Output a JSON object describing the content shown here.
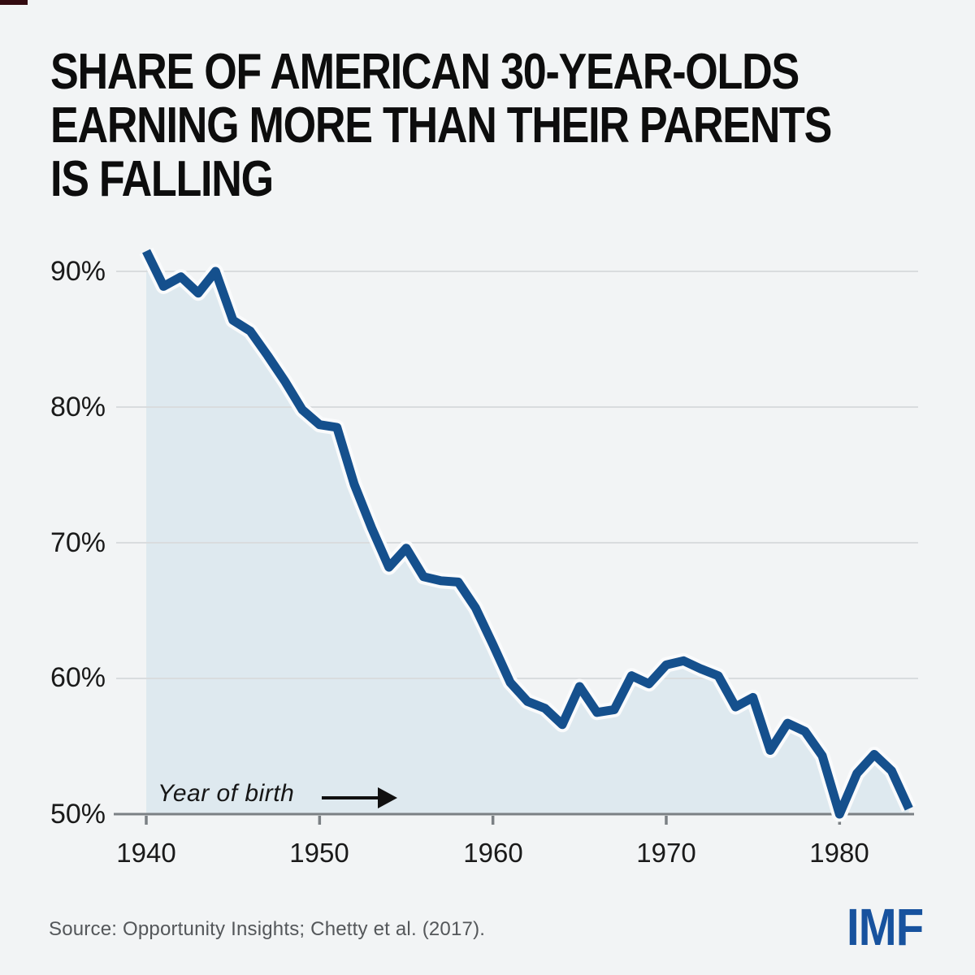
{
  "title_lines": [
    "SHARE OF AMERICAN 30-YEAR-OLDS",
    "EARNING MORE THAN THEIR PARENTS",
    "IS FALLING"
  ],
  "source": "Source: Opportunity Insights; Chetty et al. (2017).",
  "logo": "IMF",
  "colors": {
    "background": "#f2f4f5",
    "line": "#15508d",
    "fill": "#dee9ef",
    "halo": "#fafbfc",
    "gridline": "#d9dcde",
    "axis": "#7b8084",
    "logo_blue": "#17529e",
    "title_text": "#0d0d0d",
    "source_text": "#54575a"
  },
  "chart_data": {
    "type": "area",
    "title": "Share of American 30-year-olds earning more than their parents is falling",
    "xlabel": "Year of birth",
    "ylabel": "",
    "annotation": "Year of birth",
    "grid": "horizontal",
    "legend": "none",
    "xlim": [
      1940,
      1984
    ],
    "ylim": [
      50,
      92
    ],
    "y_tick_labels": [
      "90%",
      "80%",
      "70%",
      "60%",
      "50%"
    ],
    "y_tick_values": [
      90,
      80,
      70,
      60,
      50
    ],
    "x_tick_labels": [
      "1940",
      "1950",
      "1960",
      "1970",
      "1980"
    ],
    "x_tick_values": [
      1940,
      1950,
      1960,
      1970,
      1980
    ],
    "x": [
      1940,
      1941,
      1942,
      1943,
      1944,
      1945,
      1946,
      1947,
      1948,
      1949,
      1950,
      1951,
      1952,
      1953,
      1954,
      1955,
      1956,
      1957,
      1958,
      1959,
      1960,
      1961,
      1962,
      1963,
      1964,
      1965,
      1966,
      1967,
      1968,
      1969,
      1970,
      1971,
      1972,
      1973,
      1974,
      1975,
      1976,
      1977,
      1978,
      1979,
      1980,
      1981,
      1982,
      1983,
      1984
    ],
    "values": [
      91.5,
      88.9,
      89.6,
      88.4,
      90.0,
      86.4,
      85.6,
      83.8,
      81.9,
      79.8,
      78.7,
      78.5,
      74.3,
      71.1,
      68.2,
      69.6,
      67.5,
      67.2,
      67.1,
      65.2,
      62.5,
      59.7,
      58.3,
      57.8,
      56.6,
      59.4,
      57.5,
      57.7,
      60.2,
      59.6,
      61.0,
      61.3,
      60.7,
      60.2,
      57.9,
      58.6,
      54.7,
      56.7,
      56.1,
      54.3,
      50.0,
      53.0,
      54.4,
      53.2,
      50.4
    ]
  }
}
